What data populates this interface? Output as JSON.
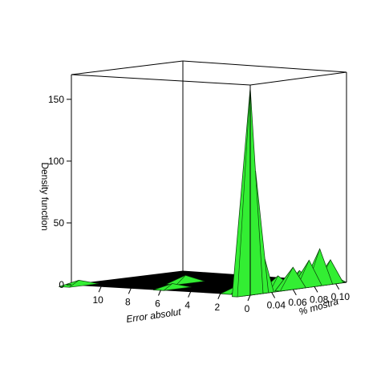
{
  "chart_data": {
    "type": "surface",
    "xlabel": "Error absolut",
    "ylabel": "% mostra",
    "zlabel": "Density function",
    "x_ticks": [
      0,
      2,
      4,
      6,
      8,
      10
    ],
    "y_ticks": [
      "0.04",
      "0.06",
      "0.08",
      "0.10"
    ],
    "z_ticks": [
      0,
      50,
      100,
      150
    ],
    "xlim": [
      0,
      12
    ],
    "ylim": [
      0.02,
      0.11
    ],
    "zlim": [
      0,
      170
    ],
    "grid": false,
    "surface_color": "#33ee33",
    "floor_color": "#000000",
    "peaks": [
      {
        "x": 0.0,
        "y": 0.02,
        "z": 168
      },
      {
        "x": 0.0,
        "y": 0.025,
        "z": 100
      },
      {
        "x": 0.0,
        "y": 0.03,
        "z": 40
      },
      {
        "x": 0.0,
        "y": 0.06,
        "z": 18
      },
      {
        "x": 0.0,
        "y": 0.075,
        "z": 22
      },
      {
        "x": 0.0,
        "y": 0.085,
        "z": 30
      },
      {
        "x": 0.0,
        "y": 0.095,
        "z": 20
      },
      {
        "x": 0.3,
        "y": 0.05,
        "z": 12
      },
      {
        "x": 0.3,
        "y": 0.07,
        "z": 14
      },
      {
        "x": 0.3,
        "y": 0.09,
        "z": 10
      },
      {
        "x": 0.6,
        "y": 0.04,
        "z": 8
      },
      {
        "x": 0.6,
        "y": 0.1,
        "z": 9
      },
      {
        "x": 1.5,
        "y": 0.03,
        "z": 6
      },
      {
        "x": 6.0,
        "y": 0.03,
        "z": 4
      },
      {
        "x": 7.5,
        "y": 0.06,
        "z": 6
      },
      {
        "x": 11.5,
        "y": 0.02,
        "z": 4
      }
    ]
  }
}
